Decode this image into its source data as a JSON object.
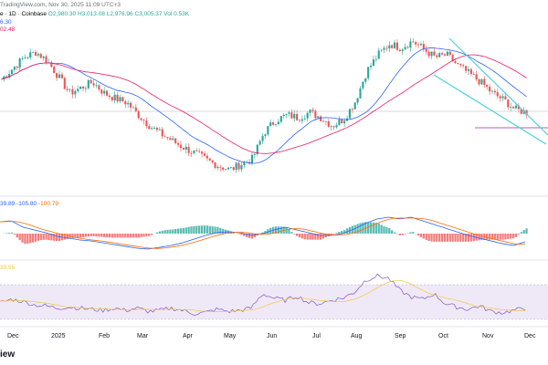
{
  "header": {
    "title_fragment": "e · 1D · Coinbase",
    "published": "TradingView.com, Nov 30, 2025 11:09 UTC+3",
    "ohlc": {
      "open": "O2,980.30",
      "high": "H3,013.08",
      "low": "L2,976.96",
      "close": "C3,005.37",
      "volume": "Vol 0.53K"
    },
    "ma_fast": "6.30",
    "ma_slow": "02.48"
  },
  "macd_header": {
    "macd": "39.89",
    "signal": "-105.80",
    "hist": "-100.79"
  },
  "rsi_header": {
    "value": "30.55"
  },
  "brand": "iew",
  "colors": {
    "up": "#26a69a",
    "down": "#ef5350",
    "ma_fast": "#2962ff",
    "ma_slow": "#e91e63",
    "channel": "#4dd0e1",
    "macd_line": "#2962ff",
    "signal_line": "#ff6d00",
    "rsi_line": "#7e57c2",
    "rsi_ma": "#f5c542",
    "rsi_band": "#ede7f6"
  },
  "chart_data": {
    "type": "candlestick",
    "x_ticks": [
      "Dec",
      "2025",
      "Feb",
      "Mar",
      "Apr",
      "May",
      "Jun",
      "Jul",
      "Aug",
      "Sep",
      "Oct",
      "Nov",
      "Dec"
    ],
    "price_series_shape": [
      0.72,
      0.8,
      0.88,
      0.92,
      0.86,
      0.74,
      0.62,
      0.66,
      0.7,
      0.62,
      0.58,
      0.55,
      0.46,
      0.38,
      0.32,
      0.27,
      0.22,
      0.18,
      0.13,
      0.09,
      0.06,
      0.1,
      0.14,
      0.33,
      0.42,
      0.46,
      0.44,
      0.48,
      0.44,
      0.38,
      0.43,
      0.56,
      0.78,
      0.9,
      0.98,
      0.95,
      1.0,
      0.94,
      0.88,
      0.9,
      0.82,
      0.76,
      0.7,
      0.62,
      0.57,
      0.5,
      0.48
    ],
    "macd_shape": [
      0.7,
      0.72,
      0.58,
      0.52,
      0.46,
      0.38,
      0.34,
      0.3,
      0.28,
      0.24,
      0.2,
      0.16,
      0.12,
      0.1,
      0.14,
      0.18,
      0.24,
      0.32,
      0.4,
      0.46,
      0.48,
      0.46,
      0.4,
      0.44,
      0.52,
      0.58,
      0.52,
      0.46,
      0.4,
      0.4,
      0.44,
      0.54,
      0.66,
      0.76,
      0.8,
      0.76,
      0.8,
      0.72,
      0.64,
      0.56,
      0.48,
      0.4,
      0.34,
      0.28,
      0.22,
      0.18,
      0.26
    ],
    "rsi_shape": [
      0.4,
      0.46,
      0.42,
      0.36,
      0.34,
      0.3,
      0.32,
      0.3,
      0.28,
      0.26,
      0.3,
      0.26,
      0.3,
      0.24,
      0.26,
      0.3,
      0.26,
      0.2,
      0.22,
      0.28,
      0.24,
      0.26,
      0.3,
      0.56,
      0.48,
      0.44,
      0.52,
      0.4,
      0.38,
      0.44,
      0.48,
      0.58,
      0.8,
      0.88,
      0.84,
      0.62,
      0.5,
      0.46,
      0.56,
      0.38,
      0.32,
      0.28,
      0.34,
      0.24,
      0.22,
      0.26,
      0.3
    ]
  }
}
